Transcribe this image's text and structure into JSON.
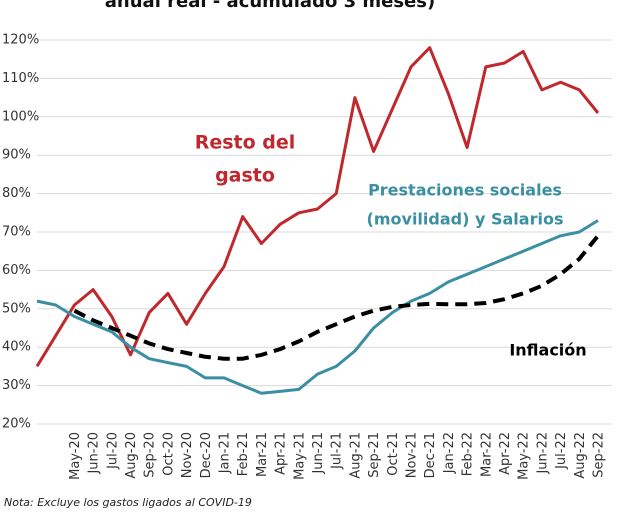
{
  "chart_data": {
    "type": "line",
    "title": "anual real - acumulado 3 meses)",
    "note": "Nota: Excluye los gastos ligados al COVID-19",
    "categories": [
      null,
      null,
      "May-20",
      "Jun-20",
      "Jul-20",
      "Aug-20",
      "Sep-20",
      "Oct-20",
      "Nov-20",
      "Dec-20",
      "Jan-21",
      "Feb-21",
      "Mar-21",
      "Apr-21",
      "May-21",
      "Jun-21",
      "Jul-21",
      "Aug-21",
      "Sep-21",
      "Oct-21",
      "Nov-21",
      "Dec-21",
      "Jan-22",
      "Feb-22",
      "Mar-22",
      "Apr-22",
      "May-22",
      "Jun-22",
      "Jul-22",
      "Aug-22",
      "Sep-22"
    ],
    "series": [
      {
        "name": [
          "Resto del",
          "gasto"
        ],
        "color": "#c0282d",
        "dash": false,
        "values": [
          35,
          43,
          51,
          55,
          48,
          38,
          49,
          54,
          46,
          54,
          61,
          74,
          67,
          72,
          75,
          76,
          80,
          105,
          91,
          102,
          113,
          118,
          106,
          92,
          113,
          114,
          117,
          107,
          109,
          107,
          101
        ]
      },
      {
        "name": [
          "Prestaciones sociales",
          "(movilidad) y Salarios"
        ],
        "color": "#3a8fa3",
        "dash": false,
        "values": [
          52,
          51,
          48,
          46,
          44,
          40,
          37,
          36,
          35,
          32,
          32,
          30,
          28,
          28.5,
          29,
          33,
          35,
          39,
          45,
          49,
          52,
          54,
          57,
          59,
          61,
          63,
          65,
          67,
          69,
          70,
          73
        ]
      },
      {
        "name": [
          "Inflación"
        ],
        "color": "#000000",
        "dash": true,
        "values": [
          null,
          null,
          49.5,
          47,
          45,
          43,
          41,
          39.5,
          38.5,
          37.5,
          37,
          37,
          38,
          39.5,
          41.5,
          44,
          46,
          48,
          49.5,
          50.5,
          51,
          51.3,
          51.2,
          51.2,
          51.5,
          52.5,
          54,
          56,
          59,
          63,
          69
        ]
      }
    ],
    "ylim": [
      20,
      120
    ],
    "yticks": [
      {
        "value": 20,
        "label": "20%"
      },
      {
        "value": 30,
        "label": "30%"
      },
      {
        "value": 40,
        "label": "40%"
      },
      {
        "value": 50,
        "label": "50%"
      },
      {
        "value": 60,
        "label": "60%"
      },
      {
        "value": 70,
        "label": "70%"
      },
      {
        "value": 80,
        "label": "80%"
      },
      {
        "value": 90,
        "label": "90%"
      },
      {
        "value": 100,
        "label": "100%"
      },
      {
        "value": 110,
        "label": "110%"
      },
      {
        "value": 120,
        "label": "120%"
      }
    ],
    "grid": true
  }
}
